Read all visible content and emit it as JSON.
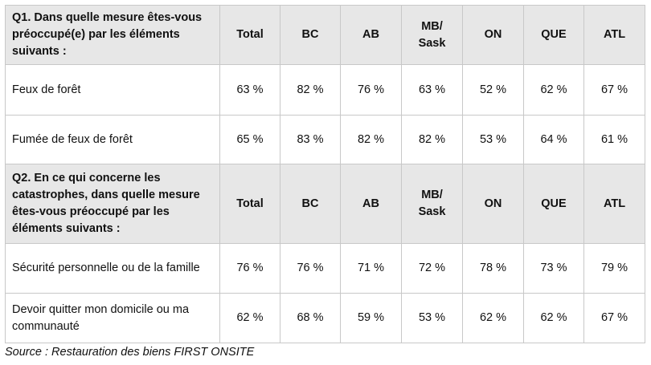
{
  "columns": [
    "Total",
    "BC",
    "AB",
    "MB/\nSask",
    "ON",
    "QUE",
    "ATL"
  ],
  "sections": [
    {
      "question": "Q1. Dans quelle mesure êtes-vous préoccupé(e) par les éléments suivants :",
      "rows": [
        {
          "label": "Feux de forêt",
          "values": [
            "63 %",
            "82 %",
            "76 %",
            "63 %",
            "52 %",
            "62 %",
            "67 %"
          ]
        },
        {
          "label": "Fumée de feux de forêt",
          "values": [
            "65 %",
            "83 %",
            "82 %",
            "82 %",
            "53 %",
            "64 %",
            "61 %"
          ]
        }
      ]
    },
    {
      "question": "Q2. En ce qui concerne les catastrophes, dans quelle mesure êtes-vous préoccupé par les éléments suivants :",
      "rows": [
        {
          "label": "Sécurité personnelle ou de la famille",
          "values": [
            "76 %",
            "76 %",
            "71 %",
            "72 %",
            "78 %",
            "73 %",
            "79 %"
          ]
        },
        {
          "label": "Devoir quitter mon domicile ou ma communauté",
          "values": [
            "62 %",
            "68 %",
            "59 %",
            "53 %",
            "62 %",
            "62 %",
            "67 %"
          ]
        }
      ]
    }
  ],
  "source": "Source : Restauration des biens FIRST ONSITE",
  "colors": {
    "header_bg": "#e7e7e7",
    "border": "#c8c8c8"
  }
}
